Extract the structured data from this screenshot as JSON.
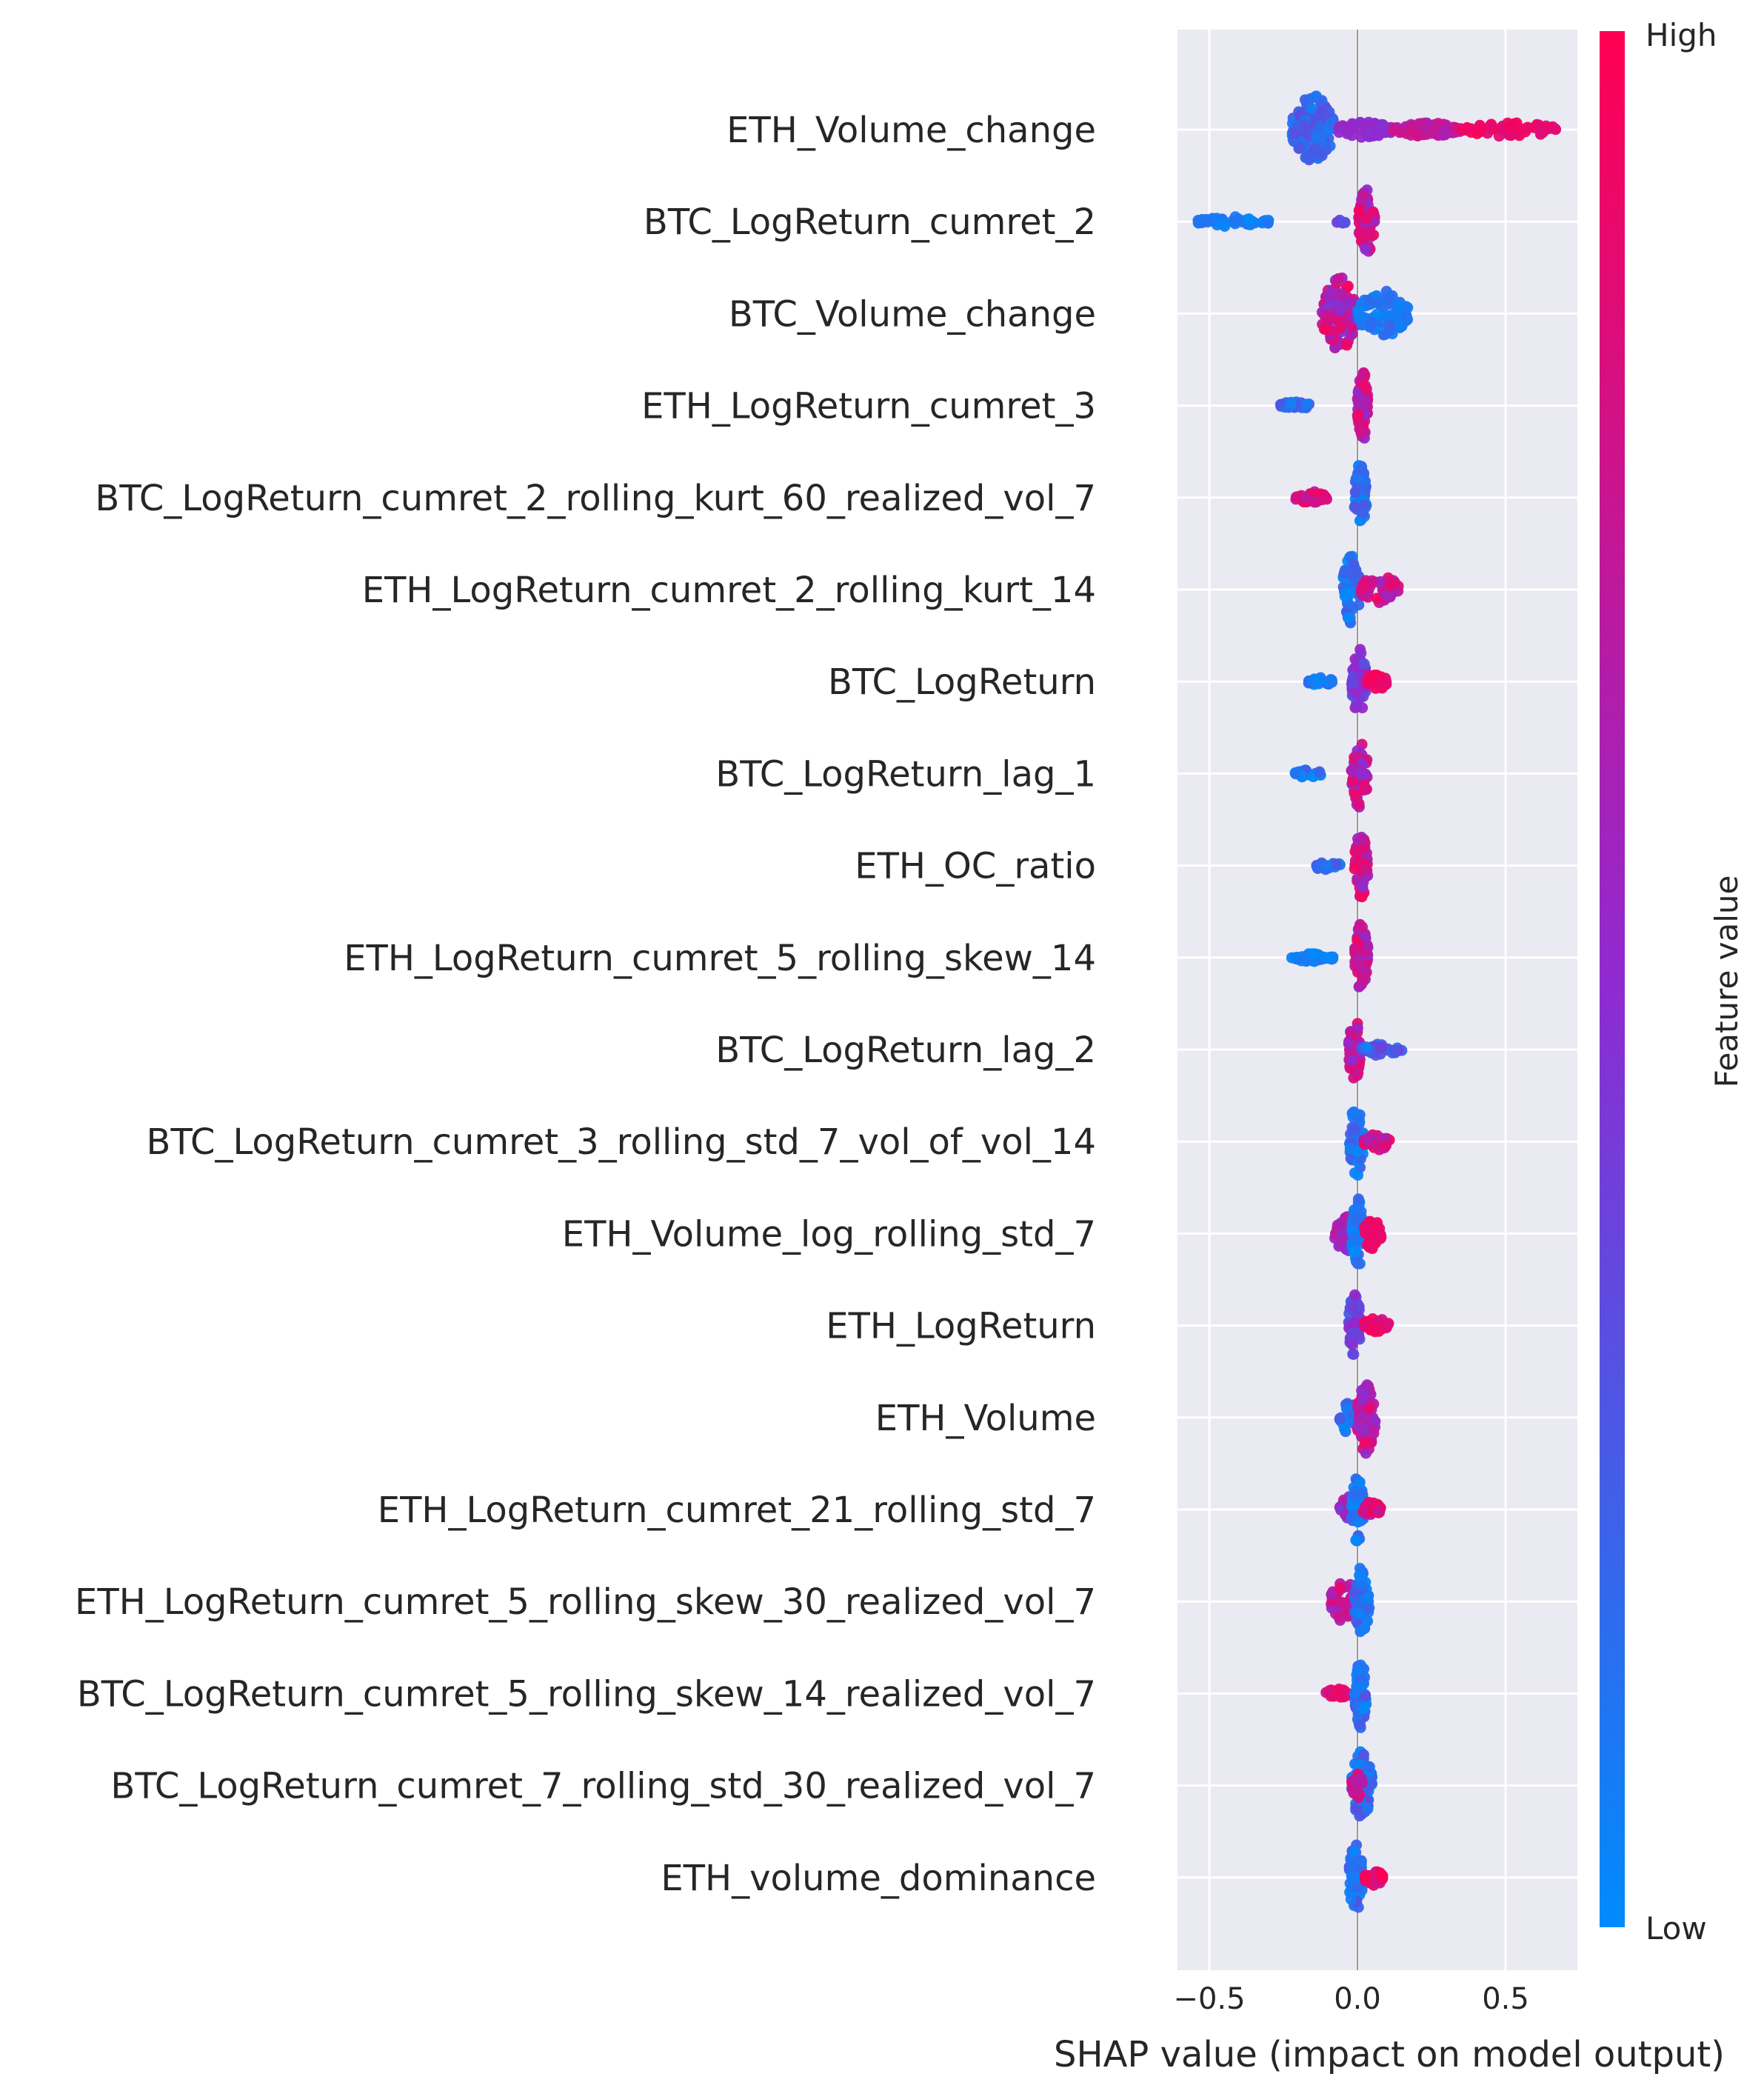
{
  "chart_data": {
    "type": "scatter",
    "subtype": "shap-beeswarm",
    "title": "",
    "xlabel": "SHAP value (impact on model output)",
    "ylabel": "",
    "xlim": [
      -0.6,
      0.73
    ],
    "xticks": [
      -0.5,
      0.0,
      0.5
    ],
    "xtick_labels": [
      "−0.5",
      "0.0",
      "0.5"
    ],
    "grid": true,
    "zero_line": 0,
    "colorbar": {
      "title": "Feature value",
      "high_label": "High",
      "low_label": "Low",
      "low_color": "#008bfb",
      "mid_color": "#8f2ad0",
      "high_color": "#ff0052",
      "placement": "right"
    },
    "features": [
      {
        "name": "ETH_Volume_change",
        "clusters": [
          {
            "lo": -0.22,
            "hi": -0.08,
            "half": 0.8,
            "n": 150,
            "v": [
              0.05,
              0.35
            ]
          },
          {
            "lo": -0.08,
            "hi": 0.12,
            "half": 0.18,
            "n": 70,
            "v": [
              0.45,
              0.6
            ]
          },
          {
            "lo": 0.12,
            "hi": 0.35,
            "half": 0.16,
            "n": 70,
            "v": [
              0.6,
              0.8
            ]
          },
          {
            "lo": 0.35,
            "hi": 0.68,
            "half": 0.16,
            "n": 60,
            "v": [
              0.85,
              1.0
            ]
          }
        ]
      },
      {
        "name": "BTC_LogReturn_cumret_2",
        "clusters": [
          {
            "lo": -0.54,
            "hi": -0.3,
            "half": 0.12,
            "n": 50,
            "v": [
              0.0,
              0.15
            ]
          },
          {
            "lo": -0.07,
            "hi": -0.04,
            "half": 0.06,
            "n": 6,
            "v": [
              0.3,
              0.4
            ]
          },
          {
            "lo": 0.0,
            "hi": 0.06,
            "half": 0.75,
            "n": 70,
            "v": [
              0.45,
              0.95
            ]
          }
        ]
      },
      {
        "name": "BTC_Volume_change",
        "clusters": [
          {
            "lo": -0.12,
            "hi": 0.0,
            "half": 0.85,
            "n": 110,
            "v": [
              0.45,
              0.95
            ]
          },
          {
            "lo": 0.0,
            "hi": 0.17,
            "half": 0.55,
            "n": 90,
            "v": [
              0.0,
              0.2
            ]
          }
        ]
      },
      {
        "name": "ETH_LogReturn_cumret_3",
        "clusters": [
          {
            "lo": -0.26,
            "hi": -0.16,
            "half": 0.1,
            "n": 30,
            "v": [
              0.05,
              0.3
            ]
          },
          {
            "lo": 0.0,
            "hi": 0.035,
            "half": 0.85,
            "n": 60,
            "v": [
              0.5,
              0.95
            ]
          }
        ]
      },
      {
        "name": "BTC_LogReturn_cumret_2_rolling_kurt_60_realized_vol_7",
        "clusters": [
          {
            "lo": -0.21,
            "hi": -0.1,
            "half": 0.14,
            "n": 35,
            "v": [
              0.7,
              0.95
            ]
          },
          {
            "lo": -0.01,
            "hi": 0.03,
            "half": 0.8,
            "n": 60,
            "v": [
              0.0,
              0.3
            ]
          }
        ]
      },
      {
        "name": "ETH_LogReturn_cumret_2_rolling_kurt_14",
        "clusters": [
          {
            "lo": -0.05,
            "hi": 0.01,
            "half": 0.8,
            "n": 55,
            "v": [
              0.0,
              0.25
            ]
          },
          {
            "lo": 0.01,
            "hi": 0.14,
            "half": 0.35,
            "n": 55,
            "v": [
              0.55,
              0.95
            ]
          }
        ]
      },
      {
        "name": "BTC_LogReturn",
        "clusters": [
          {
            "lo": -0.17,
            "hi": -0.08,
            "half": 0.1,
            "n": 25,
            "v": [
              0.0,
              0.2
            ]
          },
          {
            "lo": -0.02,
            "hi": 0.03,
            "half": 0.8,
            "n": 55,
            "v": [
              0.3,
              0.6
            ]
          },
          {
            "lo": 0.03,
            "hi": 0.1,
            "half": 0.2,
            "n": 30,
            "v": [
              0.85,
              1.0
            ]
          }
        ]
      },
      {
        "name": "BTC_LogReturn_lag_1",
        "clusters": [
          {
            "lo": -0.21,
            "hi": -0.12,
            "half": 0.1,
            "n": 25,
            "v": [
              0.0,
              0.25
            ]
          },
          {
            "lo": -0.02,
            "hi": 0.035,
            "half": 0.8,
            "n": 60,
            "v": [
              0.45,
              0.95
            ]
          }
        ]
      },
      {
        "name": "ETH_OC_ratio",
        "clusters": [
          {
            "lo": -0.15,
            "hi": -0.05,
            "half": 0.12,
            "n": 25,
            "v": [
              0.05,
              0.3
            ]
          },
          {
            "lo": -0.01,
            "hi": 0.035,
            "half": 0.8,
            "n": 60,
            "v": [
              0.5,
              1.0
            ]
          }
        ]
      },
      {
        "name": "ETH_LogReturn_cumret_5_rolling_skew_14",
        "clusters": [
          {
            "lo": -0.24,
            "hi": -0.08,
            "half": 0.1,
            "n": 35,
            "v": [
              0.0,
              0.2
            ]
          },
          {
            "lo": -0.01,
            "hi": 0.035,
            "half": 0.8,
            "n": 60,
            "v": [
              0.45,
              0.95
            ]
          }
        ]
      },
      {
        "name": "BTC_LogReturn_lag_2",
        "clusters": [
          {
            "lo": -0.03,
            "hi": 0.01,
            "half": 0.8,
            "n": 55,
            "v": [
              0.5,
              0.95
            ]
          },
          {
            "lo": 0.01,
            "hi": 0.15,
            "half": 0.15,
            "n": 30,
            "v": [
              0.05,
              0.4
            ]
          }
        ]
      },
      {
        "name": "BTC_LogReturn_cumret_3_rolling_std_7_vol_of_vol_14",
        "clusters": [
          {
            "lo": -0.03,
            "hi": 0.02,
            "half": 0.85,
            "n": 55,
            "v": [
              0.0,
              0.25
            ]
          },
          {
            "lo": 0.02,
            "hi": 0.11,
            "half": 0.2,
            "n": 30,
            "v": [
              0.6,
              0.95
            ]
          }
        ]
      },
      {
        "name": "ETH_Volume_log_rolling_std_7",
        "clusters": [
          {
            "lo": -0.08,
            "hi": 0.0,
            "half": 0.45,
            "n": 45,
            "v": [
              0.4,
              0.7
            ]
          },
          {
            "lo": -0.02,
            "hi": 0.02,
            "half": 0.85,
            "n": 50,
            "v": [
              0.0,
              0.2
            ]
          },
          {
            "lo": 0.02,
            "hi": 0.08,
            "half": 0.35,
            "n": 40,
            "v": [
              0.85,
              1.0
            ]
          }
        ]
      },
      {
        "name": "ETH_LogReturn",
        "clusters": [
          {
            "lo": -0.03,
            "hi": 0.01,
            "half": 0.8,
            "n": 55,
            "v": [
              0.2,
              0.55
            ]
          },
          {
            "lo": 0.02,
            "hi": 0.11,
            "half": 0.18,
            "n": 30,
            "v": [
              0.8,
              1.0
            ]
          }
        ]
      },
      {
        "name": "ETH_Volume",
        "clusters": [
          {
            "lo": -0.06,
            "hi": 0.0,
            "half": 0.4,
            "n": 35,
            "v": [
              0.0,
              0.25
            ]
          },
          {
            "lo": 0.0,
            "hi": 0.06,
            "half": 0.85,
            "n": 60,
            "v": [
              0.45,
              0.95
            ]
          }
        ]
      },
      {
        "name": "ETH_LogReturn_cumret_21_rolling_std_7",
        "clusters": [
          {
            "lo": -0.06,
            "hi": 0.0,
            "half": 0.3,
            "n": 30,
            "v": [
              0.4,
              0.7
            ]
          },
          {
            "lo": -0.02,
            "hi": 0.02,
            "half": 0.85,
            "n": 50,
            "v": [
              0.0,
              0.2
            ]
          },
          {
            "lo": 0.02,
            "hi": 0.08,
            "half": 0.2,
            "n": 25,
            "v": [
              0.7,
              1.0
            ]
          }
        ]
      },
      {
        "name": "ETH_LogReturn_cumret_5_rolling_skew_30_realized_vol_7",
        "clusters": [
          {
            "lo": -0.09,
            "hi": 0.0,
            "half": 0.5,
            "n": 55,
            "v": [
              0.5,
              0.9
            ]
          },
          {
            "lo": -0.01,
            "hi": 0.04,
            "half": 0.85,
            "n": 55,
            "v": [
              0.0,
              0.3
            ]
          }
        ]
      },
      {
        "name": "BTC_LogReturn_cumret_5_rolling_skew_14_realized_vol_7",
        "clusters": [
          {
            "lo": -0.11,
            "hi": -0.03,
            "half": 0.12,
            "n": 25,
            "v": [
              0.75,
              1.0
            ]
          },
          {
            "lo": -0.01,
            "hi": 0.03,
            "half": 0.8,
            "n": 55,
            "v": [
              0.0,
              0.35
            ]
          }
        ]
      },
      {
        "name": "BTC_LogReturn_cumret_7_rolling_std_30_realized_vol_7",
        "clusters": [
          {
            "lo": -0.02,
            "hi": 0.05,
            "half": 0.8,
            "n": 65,
            "v": [
              0.0,
              0.35
            ]
          },
          {
            "lo": -0.02,
            "hi": 0.02,
            "half": 0.3,
            "n": 25,
            "v": [
              0.6,
              0.9
            ]
          }
        ]
      },
      {
        "name": "ETH_volume_dominance",
        "clusters": [
          {
            "lo": -0.03,
            "hi": 0.02,
            "half": 0.8,
            "n": 50,
            "v": [
              0.0,
              0.3
            ]
          },
          {
            "lo": 0.02,
            "hi": 0.09,
            "half": 0.2,
            "n": 30,
            "v": [
              0.8,
              1.0
            ]
          }
        ]
      }
    ]
  }
}
